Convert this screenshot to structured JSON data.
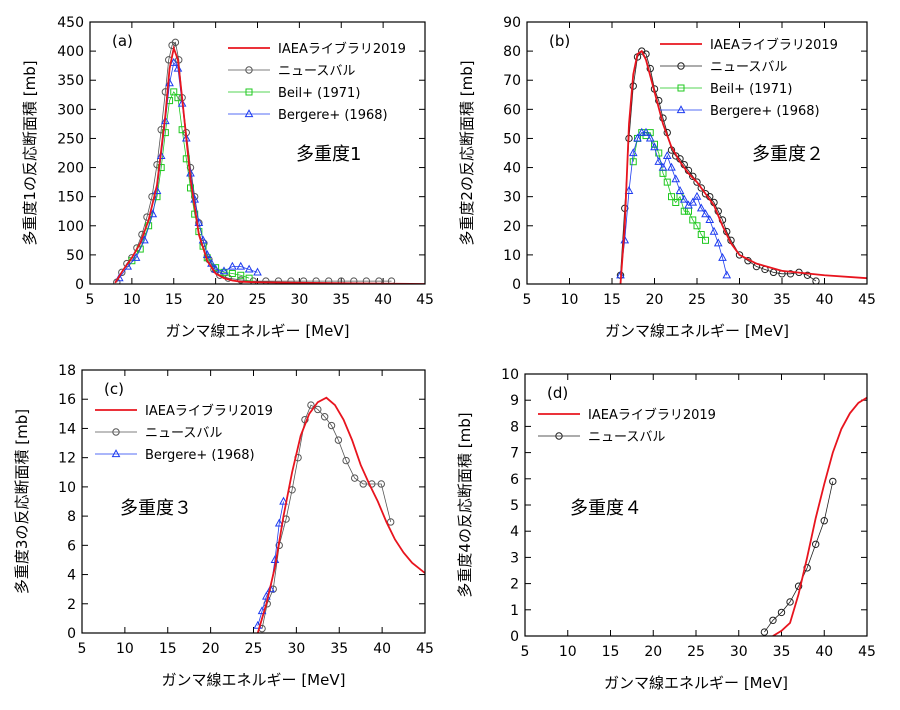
{
  "chart_data": [
    {
      "panel_label": "(a)",
      "type": "line",
      "annotation": "多重度1",
      "xlabel": "ガンマ線エネルギー [MeV]",
      "ylabel": "多重度1の反応断面積 [mb]",
      "xlim": [
        5,
        45
      ],
      "ylim": [
        0,
        450
      ],
      "xticks": [
        5,
        10,
        15,
        20,
        25,
        30,
        35,
        40,
        45
      ],
      "yticks": [
        0,
        50,
        100,
        150,
        200,
        250,
        300,
        350,
        400,
        450
      ],
      "legend_position": "top-right",
      "series": [
        {
          "name": "IAEAライブラリ2019",
          "style": "line",
          "color": "#e8141e",
          "x": [
            8,
            9,
            10,
            11,
            12,
            13,
            14,
            14.5,
            15,
            15.5,
            16,
            17,
            18,
            19,
            20,
            21,
            22,
            23,
            25,
            30,
            45
          ],
          "y": [
            2,
            25,
            45,
            70,
            110,
            170,
            290,
            370,
            405,
            385,
            320,
            180,
            85,
            40,
            18,
            10,
            6,
            4,
            3,
            2,
            0
          ]
        },
        {
          "name": "ニュースバル",
          "style": "circle",
          "color": "#555555",
          "x": [
            8.2,
            8.8,
            9.4,
            10,
            10.6,
            11.2,
            11.8,
            12.4,
            13,
            13.5,
            14,
            14.4,
            14.8,
            15.2,
            15.6,
            16,
            16.5,
            17,
            17.5,
            18,
            18.6,
            19.2,
            19.8,
            20.5,
            21.5,
            23,
            24.5,
            26,
            27.5,
            29,
            30.5,
            32,
            33.5,
            35,
            36.5,
            38,
            39.5,
            41
          ],
          "y": [
            3,
            20,
            35,
            45,
            62,
            85,
            115,
            150,
            205,
            265,
            330,
            385,
            410,
            415,
            385,
            320,
            260,
            200,
            150,
            105,
            70,
            42,
            25,
            15,
            10,
            7,
            5,
            5,
            5,
            5,
            5,
            5,
            5,
            5,
            5,
            5,
            5,
            5
          ]
        },
        {
          "name": "Beil+ (1971)",
          "style": "square",
          "color": "#1ec81e",
          "x": [
            10,
            11,
            12,
            13,
            13.5,
            14,
            14.5,
            15,
            15.5,
            16,
            16.5,
            17,
            17.5,
            18,
            18.5,
            19,
            20,
            21,
            22,
            23,
            24
          ],
          "y": [
            40,
            60,
            100,
            150,
            200,
            260,
            315,
            330,
            320,
            265,
            215,
            165,
            120,
            90,
            65,
            45,
            28,
            20,
            18,
            15,
            10
          ]
        },
        {
          "name": "Bergere+ (1968)",
          "style": "triangle",
          "color": "#1e3cf0",
          "x": [
            8.5,
            9.5,
            10.5,
            11.5,
            12.5,
            13,
            13.5,
            14,
            14.5,
            15,
            15.5,
            16,
            16.5,
            17,
            17.5,
            18,
            18.5,
            19,
            19.5,
            20,
            21,
            22,
            23,
            24,
            25
          ],
          "y": [
            10,
            30,
            45,
            75,
            120,
            160,
            220,
            280,
            345,
            380,
            370,
            310,
            250,
            190,
            145,
            105,
            75,
            50,
            35,
            25,
            22,
            30,
            30,
            25,
            20
          ]
        }
      ]
    },
    {
      "panel_label": "(b)",
      "type": "line",
      "annotation": "多重度２",
      "xlabel": "ガンマ線エネルギー [MeV]",
      "ylabel": "多重度2の反応断面積 [mb]",
      "xlim": [
        5,
        45
      ],
      "ylim": [
        0,
        90
      ],
      "xticks": [
        5,
        10,
        15,
        20,
        25,
        30,
        35,
        40,
        45
      ],
      "yticks": [
        0,
        10,
        20,
        30,
        40,
        50,
        60,
        70,
        80,
        90
      ],
      "legend_position": "top-right",
      "series": [
        {
          "name": "IAEAライブラリ2019",
          "style": "line",
          "color": "#e8141e",
          "x": [
            16,
            16.5,
            17,
            17.5,
            18,
            18.5,
            19,
            20,
            21,
            22,
            23,
            24,
            25,
            26,
            27,
            28,
            29,
            30,
            32,
            35,
            40,
            45
          ],
          "y": [
            0,
            20,
            55,
            72,
            79,
            80,
            77,
            66,
            55,
            47,
            42,
            38,
            35,
            31,
            27,
            20,
            14,
            10,
            7,
            4.5,
            3,
            2
          ]
        },
        {
          "name": "ニュースバル",
          "style": "circle",
          "color": "#222222",
          "x": [
            16,
            16.5,
            17,
            17.5,
            18,
            18.5,
            19,
            19.5,
            20,
            20.5,
            21,
            21.5,
            22,
            22.5,
            23,
            23.5,
            24,
            24.5,
            25,
            25.5,
            26,
            26.5,
            27,
            27.5,
            28,
            28.5,
            29,
            30,
            31,
            32,
            33,
            34,
            35,
            36,
            37,
            38,
            39
          ],
          "y": [
            3,
            26,
            50,
            68,
            78,
            80,
            79,
            74,
            67,
            63,
            57,
            52,
            46,
            44,
            43,
            41,
            39,
            37,
            35,
            33,
            31,
            30,
            28,
            25,
            22,
            18,
            15,
            10,
            8,
            6,
            5,
            4,
            3.5,
            3.5,
            4,
            3,
            1
          ]
        },
        {
          "name": "Beil+ (1971)",
          "style": "square",
          "color": "#1ec81e",
          "x": [
            17.5,
            18,
            18.5,
            19,
            19.5,
            20,
            20.5,
            21,
            21.5,
            22,
            22.5,
            23,
            23.5,
            24,
            24.5,
            25,
            25.5,
            26
          ],
          "y": [
            42,
            50,
            52,
            51,
            52,
            48,
            45,
            38,
            35,
            30,
            28,
            30,
            25,
            25,
            22,
            20,
            17,
            15
          ]
        },
        {
          "name": "Bergere+ (1968)",
          "style": "triangle",
          "color": "#1e3cf0",
          "x": [
            16,
            16.5,
            17,
            17.5,
            18,
            18.5,
            19,
            19.5,
            20,
            20.5,
            21,
            21.5,
            22,
            22.5,
            23,
            23.5,
            24,
            24.5,
            25,
            25.5,
            26,
            26.5,
            27,
            27.5,
            28,
            28.5
          ],
          "y": [
            3,
            15,
            32,
            45,
            50,
            52,
            52,
            50,
            47,
            42,
            40,
            44,
            40,
            36,
            32,
            29,
            27,
            28,
            30,
            26,
            24,
            22,
            18,
            14,
            9,
            3
          ]
        }
      ]
    },
    {
      "panel_label": "(c)",
      "type": "line",
      "annotation": "多重度３",
      "xlabel": "ガンマ線エネルギー [MeV]",
      "ylabel": "多重度3の反応断面積 [mb]",
      "xlim": [
        5,
        45
      ],
      "ylim": [
        0,
        18
      ],
      "xticks": [
        5,
        10,
        15,
        20,
        25,
        30,
        35,
        40,
        45
      ],
      "yticks": [
        0,
        2,
        4,
        6,
        8,
        10,
        12,
        14,
        16,
        18
      ],
      "legend_position": "top-left",
      "series": [
        {
          "name": "IAEAライブラリ2019",
          "style": "line",
          "color": "#e8141e",
          "x": [
            25.5,
            26.5,
            27.5,
            28.5,
            29.5,
            30.5,
            31.5,
            32.5,
            33.5,
            34.5,
            35.5,
            36.5,
            37.5,
            38.5,
            39.5,
            40.5,
            41.5,
            42.5,
            43.5,
            45
          ],
          "y": [
            0,
            2,
            4.5,
            8,
            11,
            13.5,
            15,
            15.8,
            16.1,
            15.6,
            14.6,
            13.2,
            11.5,
            10.2,
            9,
            7.6,
            6.4,
            5.5,
            4.8,
            4.1
          ]
        },
        {
          "name": "ニュースバル",
          "style": "circle",
          "color": "#555555",
          "x": [
            26,
            26.6,
            27.3,
            28,
            28.8,
            29.5,
            30.2,
            31,
            31.7,
            32.5,
            33.3,
            34.1,
            34.9,
            35.8,
            36.8,
            37.8,
            38.8,
            39.9,
            41
          ],
          "y": [
            0.3,
            2,
            3,
            6,
            7.8,
            9.8,
            12,
            14.6,
            15.6,
            15.3,
            14.8,
            14.2,
            13.2,
            11.8,
            10.6,
            10.2,
            10.2,
            10.2,
            7.6
          ]
        },
        {
          "name": "Bergere+ (1968)",
          "style": "triangle",
          "color": "#1e3cf0",
          "x": [
            25.5,
            26,
            26.5,
            27,
            27.5,
            28,
            28.5
          ],
          "y": [
            0.5,
            1.5,
            2.5,
            3,
            5,
            7.5,
            9
          ]
        }
      ]
    },
    {
      "panel_label": "(d)",
      "type": "line",
      "annotation": "多重度４",
      "xlabel": "ガンマ線エネルギー [MeV]",
      "ylabel": "多重度4の反応断面積 [mb]",
      "xlim": [
        5,
        45
      ],
      "ylim": [
        0,
        10
      ],
      "xticks": [
        5,
        10,
        15,
        20,
        25,
        30,
        35,
        40,
        45
      ],
      "yticks": [
        0,
        1,
        2,
        3,
        4,
        5,
        6,
        7,
        8,
        9,
        10
      ],
      "legend_position": "top-left",
      "series": [
        {
          "name": "IAEAライブラリ2019",
          "style": "line",
          "color": "#e8141e",
          "x": [
            34,
            35,
            36,
            37,
            38,
            39,
            40,
            41,
            42,
            43,
            44,
            45
          ],
          "y": [
            0,
            0.2,
            0.5,
            1.6,
            3,
            4.5,
            5.8,
            7,
            7.9,
            8.5,
            8.9,
            9.1
          ]
        },
        {
          "name": "ニュースバル",
          "style": "circle",
          "color": "#222222",
          "x": [
            33,
            34,
            35,
            36,
            37,
            38,
            39,
            40,
            41
          ],
          "y": [
            0.15,
            0.6,
            0.9,
            1.3,
            1.9,
            2.6,
            3.5,
            4.4,
            5.9
          ]
        }
      ]
    }
  ]
}
